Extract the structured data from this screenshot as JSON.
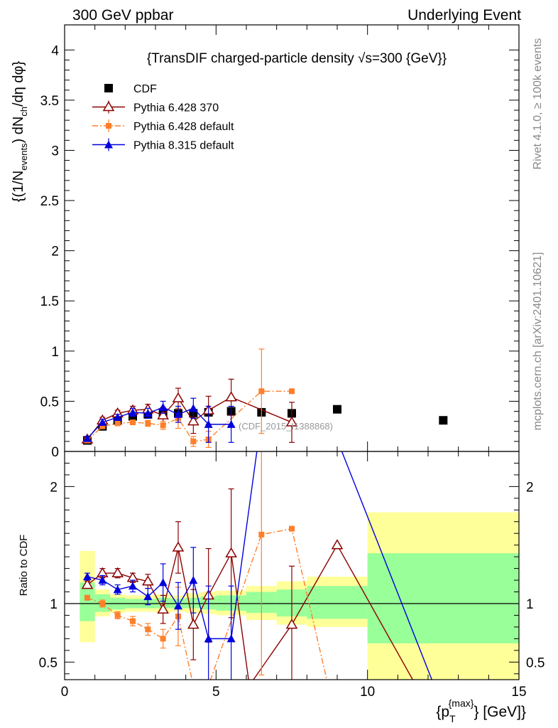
{
  "header": {
    "left": "300 GeV ppbar",
    "right": "Underlying Event"
  },
  "side_labels": {
    "rivet": "Rivet 4.1.0, ≥ 100k events",
    "mcplots": "mcplots.cern.ch [arXiv:2401.10621]"
  },
  "colors": {
    "cdf": "#000000",
    "pythia6_370": "#8b0000",
    "pythia6_default": "#ff7f2a",
    "pythia8": "#0000dd",
    "band_yellow": "#ffff99",
    "band_green": "#99ff99"
  },
  "chart_data": [
    {
      "type": "scatter",
      "title": "{TransDIF charged-particle density √s=300 {GeV}}",
      "title_parts": {
        "prefix": "{TransDIF charged-particle density ",
        "sqrt": "√",
        "suffix": "s=300 {GeV}}"
      },
      "ylabel": "{(1/N_events) dN_ch/dη dφ}",
      "ylabel_parts": {
        "open": "{(1/N",
        "sub1": "events",
        "mid": ") dN",
        "sub2": "ch",
        "close": "/dη dφ}"
      },
      "xlim": [
        0,
        15
      ],
      "ylim": [
        0,
        4.25
      ],
      "yticks": [
        0,
        0.5,
        1,
        1.5,
        2,
        2.5,
        3,
        3.5,
        4
      ],
      "ytick_labels": [
        "0",
        "0.5",
        "1",
        "1.5",
        "2",
        "2.5",
        "3",
        "3.5",
        "4"
      ],
      "watermark": "(CDF_2015_I1388868)",
      "legend": [
        "CDF",
        "Pythia 6.428 370",
        "Pythia 6.428 default",
        "Pythia 8.315 default"
      ],
      "series": [
        {
          "name": "CDF",
          "marker": "square",
          "x": [
            0.75,
            1.25,
            1.75,
            2.25,
            2.75,
            3.25,
            3.75,
            4.25,
            4.75,
            5.5,
            6.5,
            7.5,
            9.0,
            12.5
          ],
          "y": [
            0.11,
            0.25,
            0.31,
            0.35,
            0.37,
            0.38,
            0.38,
            0.38,
            0.39,
            0.4,
            0.39,
            0.38,
            0.42,
            0.31
          ]
        },
        {
          "name": "Pythia 6.428 370",
          "marker": "triangle-open",
          "x": [
            0.75,
            1.25,
            1.75,
            2.25,
            2.75,
            3.25,
            3.75,
            4.25,
            4.75,
            5.5,
            7.5
          ],
          "y": [
            0.12,
            0.31,
            0.38,
            0.41,
            0.42,
            0.36,
            0.53,
            0.3,
            0.41,
            0.54,
            0.29
          ],
          "err": [
            0.02,
            0.03,
            0.03,
            0.04,
            0.05,
            0.08,
            0.1,
            0.12,
            0.14,
            0.18,
            0.2
          ]
        },
        {
          "name": "Pythia 6.428 default",
          "marker": "square-small",
          "x": [
            0.75,
            1.25,
            1.75,
            2.25,
            2.75,
            3.25,
            3.75,
            4.25,
            4.75,
            6.5,
            7.5
          ],
          "y": [
            0.11,
            0.25,
            0.28,
            0.29,
            0.28,
            0.26,
            0.33,
            0.1,
            0.12,
            0.6,
            0.6
          ],
          "err": [
            0.01,
            0.02,
            0.02,
            0.02,
            0.03,
            0.04,
            0.1,
            0.05,
            0.08,
            0.42,
            0.0
          ]
        },
        {
          "name": "Pythia 8.315 default",
          "marker": "triangle-filled",
          "x": [
            0.75,
            1.25,
            1.75,
            2.25,
            2.75,
            3.25,
            3.75,
            4.25,
            4.75,
            5.5
          ],
          "y": [
            0.13,
            0.29,
            0.34,
            0.39,
            0.38,
            0.44,
            0.37,
            0.43,
            0.27,
            0.27
          ],
          "err": [
            0.02,
            0.03,
            0.03,
            0.04,
            0.05,
            0.06,
            0.08,
            0.1,
            0.18,
            0.18
          ]
        }
      ]
    },
    {
      "type": "line",
      "title": "Ratio to CDF",
      "ylabel": "Ratio to CDF",
      "xlabel": "{p_T^{max}} [GeV]}",
      "xlabel_parts": {
        "open": "{p",
        "sub": "T",
        "sup": "{max}",
        "close": "} [GeV]}"
      },
      "xlim": [
        0,
        15
      ],
      "ylim": [
        0.35,
        2.3
      ],
      "xticks": [
        0,
        5,
        10,
        15
      ],
      "xtick_labels": [
        "0",
        "5",
        "10",
        "15"
      ],
      "yticks": [
        0.5,
        1,
        2
      ],
      "ytick_labels": [
        "0.5",
        "1",
        "2"
      ],
      "bands": [
        {
          "x0": 0.5,
          "x1": 1.0,
          "g": [
            0.85,
            1.18
          ],
          "y": [
            0.67,
            1.45
          ]
        },
        {
          "x0": 1.0,
          "x1": 1.5,
          "g": [
            0.93,
            1.08
          ],
          "y": [
            0.89,
            1.12
          ]
        },
        {
          "x0": 1.5,
          "x1": 2.0,
          "g": [
            0.95,
            1.05
          ],
          "y": [
            0.92,
            1.08
          ]
        },
        {
          "x0": 2.0,
          "x1": 2.5,
          "g": [
            0.96,
            1.04
          ],
          "y": [
            0.93,
            1.07
          ]
        },
        {
          "x0": 2.5,
          "x1": 3.0,
          "g": [
            0.96,
            1.04
          ],
          "y": [
            0.93,
            1.07
          ]
        },
        {
          "x0": 3.0,
          "x1": 3.5,
          "g": [
            0.96,
            1.05
          ],
          "y": [
            0.92,
            1.08
          ]
        },
        {
          "x0": 3.5,
          "x1": 4.0,
          "g": [
            0.96,
            1.04
          ],
          "y": [
            0.93,
            1.07
          ]
        },
        {
          "x0": 4.0,
          "x1": 4.5,
          "g": [
            0.96,
            1.05
          ],
          "y": [
            0.92,
            1.09
          ]
        },
        {
          "x0": 4.5,
          "x1": 5.0,
          "g": [
            0.95,
            1.06
          ],
          "y": [
            0.91,
            1.1
          ]
        },
        {
          "x0": 5.0,
          "x1": 6.0,
          "g": [
            0.94,
            1.07
          ],
          "y": [
            0.9,
            1.11
          ]
        },
        {
          "x0": 6.0,
          "x1": 7.0,
          "g": [
            0.92,
            1.1
          ],
          "y": [
            0.86,
            1.15
          ]
        },
        {
          "x0": 7.0,
          "x1": 8.0,
          "g": [
            0.89,
            1.12
          ],
          "y": [
            0.82,
            1.19
          ]
        },
        {
          "x0": 8.0,
          "x1": 10.0,
          "g": [
            0.87,
            1.15
          ],
          "y": [
            0.8,
            1.23
          ]
        },
        {
          "x0": 10.0,
          "x1": 15.0,
          "g": [
            0.66,
            1.43
          ],
          "y": [
            0.35,
            1.78
          ]
        }
      ],
      "series": [
        {
          "name": "Pythia 6.428 370",
          "x": [
            0.75,
            1.25,
            1.75,
            2.25,
            2.75,
            3.25,
            3.75,
            4.25,
            4.75,
            5.5,
            6.1,
            7.5,
            9.0,
            11.6
          ],
          "y": [
            1.16,
            1.26,
            1.26,
            1.22,
            1.19,
            0.95,
            1.48,
            0.82,
            1.07,
            1.43,
            0.3,
            0.82,
            1.5,
            0.3
          ],
          "err": [
            0.03,
            0.04,
            0.04,
            0.04,
            0.06,
            0.12,
            0.22,
            0.3,
            0.4,
            0.55,
            0.0,
            0.5,
            0.0,
            0.0
          ]
        },
        {
          "name": "Pythia 6.428 default",
          "x": [
            0.75,
            1.25,
            1.75,
            2.25,
            2.75,
            3.25,
            3.75,
            4.25,
            4.75,
            6.5,
            7.5,
            8.7
          ],
          "y": [
            1.05,
            1.0,
            0.9,
            0.85,
            0.78,
            0.7,
            0.89,
            0.3,
            0.3,
            1.59,
            1.64,
            0.3
          ],
          "err": [
            0.02,
            0.03,
            0.03,
            0.04,
            0.05,
            0.08,
            0.25,
            0.0,
            0.0,
            1.2,
            0.0,
            0.0
          ]
        },
        {
          "name": "Pythia 8.315 default",
          "x": [
            0.75,
            1.25,
            1.75,
            2.25,
            2.75,
            3.25,
            3.75,
            4.25,
            4.75,
            5.5,
            6.4,
            9.0,
            12.2
          ],
          "y": [
            1.23,
            1.2,
            1.12,
            1.15,
            1.06,
            1.18,
            0.98,
            1.2,
            0.7,
            0.7,
            2.4,
            2.4,
            0.3
          ],
          "err": [
            0.03,
            0.04,
            0.04,
            0.05,
            0.07,
            0.16,
            0.2,
            0.28,
            0.45,
            0.45,
            0.0,
            0.0,
            0.0
          ]
        }
      ]
    }
  ]
}
